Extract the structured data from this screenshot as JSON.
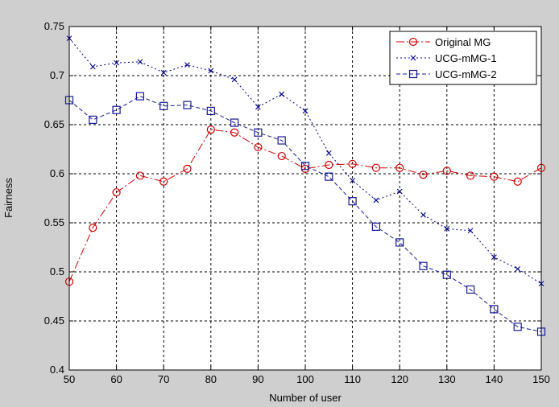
{
  "chart_data": {
    "type": "line",
    "title": "",
    "xlabel": "Number of user",
    "ylabel": "Fairness",
    "xlim": [
      50,
      150
    ],
    "ylim": [
      0.4,
      0.75
    ],
    "xticks": [
      50,
      60,
      70,
      80,
      90,
      100,
      110,
      120,
      130,
      140,
      150
    ],
    "yticks": [
      0.4,
      0.45,
      0.5,
      0.55,
      0.6,
      0.65,
      0.7,
      0.75
    ],
    "xtick_labels": [
      "50",
      "60",
      "70",
      "80",
      "90",
      "100",
      "110",
      "120",
      "130",
      "140",
      "150"
    ],
    "ytick_labels": [
      "0.4",
      "0.45",
      "0.5",
      "0.55",
      "0.6",
      "0.65",
      "0.7",
      "0.75"
    ],
    "grid": true,
    "legend_position": "top-right",
    "x": [
      50,
      55,
      60,
      65,
      70,
      75,
      80,
      85,
      90,
      95,
      100,
      105,
      110,
      115,
      120,
      125,
      130,
      135,
      140,
      145,
      150
    ],
    "series": [
      {
        "name": "Original MG",
        "color": "#d00000",
        "line_style": "dash-dot",
        "marker": "circle",
        "values": [
          0.49,
          0.545,
          0.581,
          0.598,
          0.592,
          0.605,
          0.645,
          0.642,
          0.627,
          0.618,
          0.605,
          0.609,
          0.61,
          0.606,
          0.606,
          0.599,
          0.603,
          0.598,
          0.597,
          0.592,
          0.606
        ]
      },
      {
        "name": "UCG-mMG-1",
        "color": "#00008b",
        "line_style": "dotted",
        "marker": "x",
        "values": [
          0.738,
          0.709,
          0.713,
          0.714,
          0.703,
          0.711,
          0.705,
          0.696,
          0.668,
          0.681,
          0.664,
          0.621,
          0.593,
          0.573,
          0.582,
          0.558,
          0.544,
          0.542,
          0.515,
          0.503,
          0.488
        ]
      },
      {
        "name": "UCG-mMG-2",
        "color": "#1a1a99",
        "line_style": "dashed",
        "marker": "square",
        "values": [
          0.675,
          0.655,
          0.665,
          0.679,
          0.669,
          0.67,
          0.664,
          0.652,
          0.642,
          0.634,
          0.608,
          0.597,
          0.572,
          0.546,
          0.53,
          0.506,
          0.497,
          0.482,
          0.462,
          0.444,
          0.439
        ]
      }
    ]
  }
}
